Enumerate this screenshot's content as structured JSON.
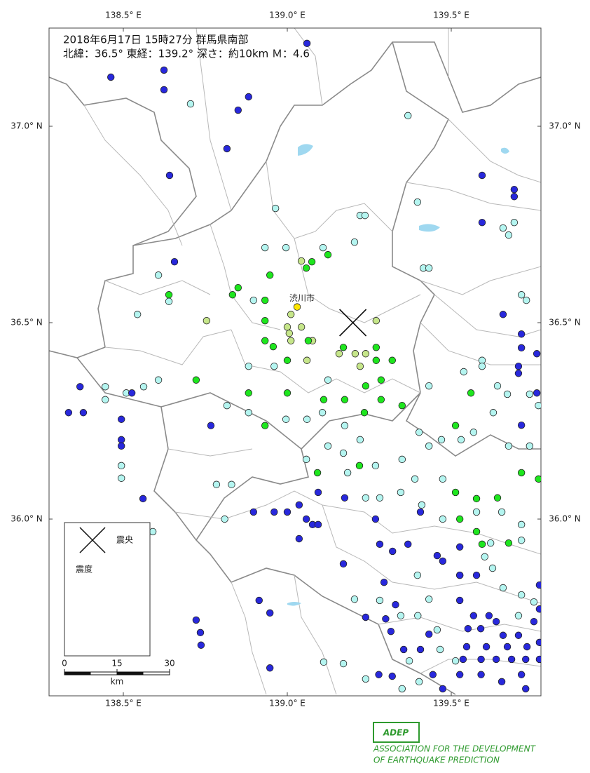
{
  "header": {
    "line1": "2018年6月17日 15時27分 群馬県南部",
    "line2": "北緯：36.5° 東経：139.2° 深さ：約10km Ｍ：4.6"
  },
  "map": {
    "lonlim": [
      138.2735,
      139.7735
    ],
    "latlim": [
      35.55,
      37.25
    ],
    "lonticks": [
      {
        "value": 138.5,
        "label": "138.5° E"
      },
      {
        "value": 139.0,
        "label": "139.0° E"
      },
      {
        "value": 139.5,
        "label": "139.5° E"
      }
    ],
    "latticks": [
      {
        "value": 37.0,
        "label": "37.0° N"
      },
      {
        "value": 36.5,
        "label": "36.5° N"
      },
      {
        "value": 36.0,
        "label": "36.0° N"
      }
    ],
    "epicenter": {
      "lon": 139.2,
      "lat": 36.5
    },
    "city": {
      "name": "渋川市",
      "lon": 139.045,
      "lat": 36.562
    }
  },
  "legend": {
    "epicenter_label": "震央",
    "title": "震度"
  },
  "stations": [
    {
      "intensity": "５弱",
      "color": "#ffe600",
      "points": [
        [
          139.03,
          36.54
        ]
      ]
    },
    {
      "intensity": "４",
      "color": "#c6e68a",
      "points": [
        [
          138.754,
          36.505
        ],
        [
          139.011,
          36.521
        ],
        [
          139.043,
          36.657
        ],
        [
          139.0,
          36.489
        ],
        [
          139.043,
          36.489
        ],
        [
          139.011,
          36.454
        ],
        [
          139.077,
          36.454
        ],
        [
          139.06,
          36.404
        ],
        [
          139.158,
          36.421
        ],
        [
          139.207,
          36.421
        ],
        [
          139.239,
          36.421
        ],
        [
          139.222,
          36.389
        ],
        [
          139.271,
          36.505
        ],
        [
          139.006,
          36.473
        ]
      ]
    },
    {
      "intensity": "３",
      "color": "#1ee61e",
      "points": [
        [
          139.058,
          36.639
        ],
        [
          139.075,
          36.655
        ],
        [
          139.124,
          36.673
        ],
        [
          138.947,
          36.621
        ],
        [
          138.85,
          36.589
        ],
        [
          138.833,
          36.571
        ],
        [
          138.932,
          36.557
        ],
        [
          138.932,
          36.505
        ],
        [
          138.639,
          36.571
        ],
        [
          138.932,
          36.454
        ],
        [
          138.957,
          36.439
        ],
        [
          139.0,
          36.404
        ],
        [
          139.0,
          36.321
        ],
        [
          138.882,
          36.321
        ],
        [
          138.722,
          36.354
        ],
        [
          138.932,
          36.238
        ],
        [
          139.064,
          36.454
        ],
        [
          139.171,
          36.437
        ],
        [
          139.271,
          36.437
        ],
        [
          139.271,
          36.404
        ],
        [
          139.32,
          36.404
        ],
        [
          139.239,
          36.339
        ],
        [
          139.286,
          36.354
        ],
        [
          139.286,
          36.304
        ],
        [
          139.175,
          36.304
        ],
        [
          139.111,
          36.304
        ],
        [
          139.235,
          36.271
        ],
        [
          139.35,
          36.289
        ],
        [
          139.56,
          36.321
        ],
        [
          139.513,
          36.238
        ],
        [
          139.22,
          36.136
        ],
        [
          139.092,
          36.118
        ],
        [
          139.513,
          36.068
        ],
        [
          139.577,
          36.052
        ],
        [
          139.526,
          36.0
        ],
        [
          139.641,
          36.054
        ],
        [
          139.577,
          35.968
        ],
        [
          139.594,
          35.936
        ],
        [
          139.675,
          35.939
        ],
        [
          139.714,
          36.118
        ],
        [
          139.766,
          36.102
        ]
      ]
    },
    {
      "intensity": "２",
      "color": "#b4f5f0",
      "points": [
        [
          138.705,
          37.057
        ],
        [
          139.368,
          37.027
        ],
        [
          138.964,
          36.791
        ],
        [
          139.222,
          36.773
        ],
        [
          139.237,
          36.773
        ],
        [
          139.205,
          36.705
        ],
        [
          138.932,
          36.691
        ],
        [
          138.996,
          36.691
        ],
        [
          139.109,
          36.691
        ],
        [
          138.607,
          36.621
        ],
        [
          138.639,
          36.554
        ],
        [
          138.543,
          36.521
        ],
        [
          138.897,
          36.557
        ],
        [
          139.397,
          36.807
        ],
        [
          139.415,
          36.639
        ],
        [
          139.432,
          36.639
        ],
        [
          139.692,
          36.755
        ],
        [
          139.658,
          36.741
        ],
        [
          139.675,
          36.723
        ],
        [
          139.714,
          36.571
        ],
        [
          139.729,
          36.557
        ],
        [
          139.594,
          36.404
        ],
        [
          139.594,
          36.389
        ],
        [
          139.538,
          36.375
        ],
        [
          139.432,
          36.339
        ],
        [
          139.641,
          36.339
        ],
        [
          139.671,
          36.318
        ],
        [
          139.739,
          36.318
        ],
        [
          139.766,
          36.289
        ],
        [
          139.628,
          36.271
        ],
        [
          138.882,
          36.389
        ],
        [
          138.96,
          36.389
        ],
        [
          139.124,
          36.354
        ],
        [
          138.607,
          36.354
        ],
        [
          138.509,
          36.321
        ],
        [
          138.445,
          36.337
        ],
        [
          138.445,
          36.304
        ],
        [
          138.562,
          36.337
        ],
        [
          138.816,
          36.289
        ],
        [
          138.882,
          36.271
        ],
        [
          138.996,
          36.254
        ],
        [
          139.06,
          36.254
        ],
        [
          139.107,
          36.271
        ],
        [
          139.175,
          36.238
        ],
        [
          139.222,
          36.202
        ],
        [
          139.124,
          36.186
        ],
        [
          139.171,
          36.168
        ],
        [
          139.058,
          36.152
        ],
        [
          139.184,
          36.118
        ],
        [
          139.269,
          36.136
        ],
        [
          139.35,
          36.152
        ],
        [
          139.432,
          36.186
        ],
        [
          139.402,
          36.221
        ],
        [
          139.47,
          36.202
        ],
        [
          139.53,
          36.202
        ],
        [
          139.568,
          36.221
        ],
        [
          139.675,
          36.186
        ],
        [
          139.739,
          36.186
        ],
        [
          139.389,
          36.102
        ],
        [
          139.474,
          36.102
        ],
        [
          139.41,
          36.036
        ],
        [
          139.346,
          36.068
        ],
        [
          139.282,
          36.054
        ],
        [
          139.239,
          36.054
        ],
        [
          139.474,
          36.0
        ],
        [
          139.577,
          36.018
        ],
        [
          139.654,
          36.018
        ],
        [
          139.714,
          35.986
        ],
        [
          139.62,
          35.939
        ],
        [
          139.714,
          35.946
        ],
        [
          139.602,
          35.904
        ],
        [
          139.626,
          35.875
        ],
        [
          139.658,
          35.825
        ],
        [
          139.714,
          35.807
        ],
        [
          139.752,
          35.789
        ],
        [
          139.705,
          35.754
        ],
        [
          139.397,
          35.857
        ],
        [
          139.526,
          35.857
        ],
        [
          139.432,
          35.796
        ],
        [
          139.282,
          35.793
        ],
        [
          139.205,
          35.796
        ],
        [
          139.346,
          35.754
        ],
        [
          139.398,
          35.754
        ],
        [
          139.457,
          35.718
        ],
        [
          139.466,
          35.668
        ],
        [
          139.513,
          35.639
        ],
        [
          139.372,
          35.639
        ],
        [
          139.402,
          35.586
        ],
        [
          139.35,
          35.568
        ],
        [
          139.239,
          35.593
        ],
        [
          139.171,
          35.632
        ],
        [
          139.111,
          35.636
        ],
        [
          138.784,
          36.088
        ],
        [
          138.83,
          36.088
        ],
        [
          138.809,
          36.0
        ],
        [
          138.59,
          35.968
        ],
        [
          138.494,
          36.136
        ],
        [
          138.494,
          36.104
        ]
      ]
    },
    {
      "intensity": "１",
      "color": "#2828dc",
      "points": [
        [
          138.462,
          37.125
        ],
        [
          138.624,
          37.143
        ],
        [
          138.624,
          37.093
        ],
        [
          138.882,
          37.075
        ],
        [
          138.85,
          37.041
        ],
        [
          138.816,
          36.943
        ],
        [
          139.06,
          37.211
        ],
        [
          138.641,
          36.875
        ],
        [
          138.656,
          36.655
        ],
        [
          139.594,
          36.875
        ],
        [
          139.692,
          36.839
        ],
        [
          139.692,
          36.821
        ],
        [
          139.594,
          36.755
        ],
        [
          139.658,
          36.521
        ],
        [
          139.714,
          36.471
        ],
        [
          139.714,
          36.436
        ],
        [
          139.761,
          36.421
        ],
        [
          139.705,
          36.389
        ],
        [
          139.705,
          36.371
        ],
        [
          139.761,
          36.321
        ],
        [
          139.714,
          36.239
        ],
        [
          138.368,
          36.337
        ],
        [
          138.333,
          36.271
        ],
        [
          138.378,
          36.271
        ],
        [
          138.526,
          36.321
        ],
        [
          138.494,
          36.254
        ],
        [
          138.494,
          36.202
        ],
        [
          138.494,
          36.186
        ],
        [
          138.767,
          36.238
        ],
        [
          138.56,
          36.052
        ],
        [
          138.511,
          35.968
        ],
        [
          138.897,
          36.018
        ],
        [
          138.96,
          36.018
        ],
        [
          139.0,
          36.018
        ],
        [
          139.036,
          36.036
        ],
        [
          139.058,
          36.0
        ],
        [
          139.077,
          35.986
        ],
        [
          139.094,
          35.986
        ],
        [
          139.094,
          36.068
        ],
        [
          139.036,
          35.95
        ],
        [
          139.175,
          36.054
        ],
        [
          139.171,
          35.886
        ],
        [
          139.269,
          36.0
        ],
        [
          139.282,
          35.936
        ],
        [
          139.321,
          35.918
        ],
        [
          139.368,
          35.936
        ],
        [
          139.406,
          36.018
        ],
        [
          139.457,
          35.907
        ],
        [
          139.474,
          35.893
        ],
        [
          139.526,
          35.857
        ],
        [
          139.577,
          35.857
        ],
        [
          139.295,
          35.839
        ],
        [
          138.914,
          35.793
        ],
        [
          138.947,
          35.761
        ],
        [
          138.722,
          35.743
        ],
        [
          138.735,
          35.711
        ],
        [
          138.737,
          35.679
        ],
        [
          138.947,
          35.621
        ],
        [
          139.239,
          35.75
        ],
        [
          139.3,
          35.746
        ],
        [
          139.316,
          35.714
        ],
        [
          139.432,
          35.707
        ],
        [
          139.526,
          35.793
        ],
        [
          139.568,
          35.754
        ],
        [
          139.615,
          35.754
        ],
        [
          139.551,
          35.721
        ],
        [
          139.59,
          35.721
        ],
        [
          139.637,
          35.739
        ],
        [
          139.658,
          35.704
        ],
        [
          139.705,
          35.704
        ],
        [
          139.752,
          35.739
        ],
        [
          139.769,
          35.771
        ],
        [
          139.769,
          35.686
        ],
        [
          139.547,
          35.675
        ],
        [
          139.607,
          35.675
        ],
        [
          139.671,
          35.675
        ],
        [
          139.731,
          35.675
        ],
        [
          139.536,
          35.643
        ],
        [
          139.591,
          35.643
        ],
        [
          139.637,
          35.643
        ],
        [
          139.684,
          35.643
        ],
        [
          139.727,
          35.643
        ],
        [
          139.769,
          35.643
        ],
        [
          139.406,
          35.668
        ],
        [
          139.355,
          35.668
        ],
        [
          139.279,
          35.604
        ],
        [
          139.444,
          35.604
        ],
        [
          139.526,
          35.604
        ],
        [
          139.591,
          35.604
        ],
        [
          139.654,
          35.586
        ],
        [
          139.714,
          35.604
        ],
        [
          139.727,
          35.568
        ],
        [
          139.474,
          35.568
        ],
        [
          139.32,
          35.6
        ],
        [
          139.769,
          35.832
        ],
        [
          139.526,
          35.929
        ],
        [
          139.33,
          35.782
        ]
      ]
    }
  ],
  "scale": {
    "ticks": [
      0,
      15,
      30
    ],
    "unit": "km"
  },
  "logo": {
    "mark": "ADEP",
    "line1": "ASSOCIATION FOR THE DEVELOPMENT",
    "line2": "OF EARTHQUAKE PREDICTION"
  }
}
